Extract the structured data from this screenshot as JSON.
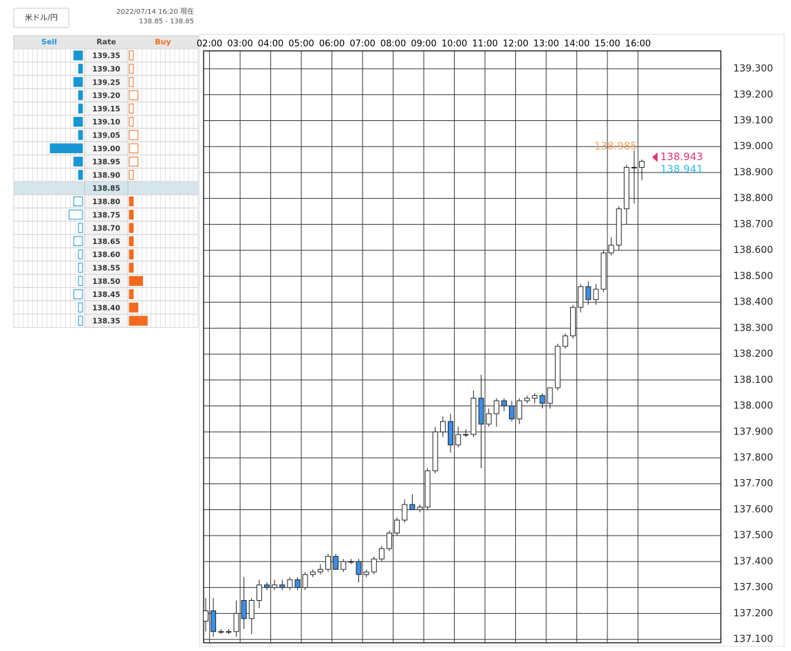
{
  "header": {
    "pair": "米ドル/円",
    "timestamp": "2022/07/14 16:20 現在",
    "quote": "138.85 - 138.85"
  },
  "order_book": {
    "headers": [
      "Sell",
      "Rate",
      "Buy"
    ],
    "current_rate": "138.85",
    "sell_color": "#1a96d4",
    "buy_color": "#f26b1d",
    "rows": [
      {
        "rate": "139.35",
        "sell": 2,
        "buy": 1
      },
      {
        "rate": "139.30",
        "sell": 1,
        "buy": 1
      },
      {
        "rate": "139.25",
        "sell": 2,
        "buy": 1
      },
      {
        "rate": "139.20",
        "sell": 1,
        "buy": 2
      },
      {
        "rate": "139.15",
        "sell": 1,
        "buy": 1
      },
      {
        "rate": "139.10",
        "sell": 2,
        "buy": 1
      },
      {
        "rate": "139.05",
        "sell": 1,
        "buy": 2
      },
      {
        "rate": "139.00",
        "sell": 7,
        "buy": 2
      },
      {
        "rate": "138.95",
        "sell": 2,
        "buy": 2
      },
      {
        "rate": "138.90",
        "sell": 1,
        "buy": 1
      },
      {
        "rate": "138.85",
        "sell": 0,
        "buy": 0
      },
      {
        "rate": "138.80",
        "sell": 2,
        "buy": 1
      },
      {
        "rate": "138.75",
        "sell": 3,
        "buy": 1
      },
      {
        "rate": "138.70",
        "sell": 1,
        "buy": 1
      },
      {
        "rate": "138.65",
        "sell": 2,
        "buy": 1
      },
      {
        "rate": "138.60",
        "sell": 1,
        "buy": 1
      },
      {
        "rate": "138.55",
        "sell": 1,
        "buy": 1
      },
      {
        "rate": "138.50",
        "sell": 1,
        "buy": 3
      },
      {
        "rate": "138.45",
        "sell": 2,
        "buy": 1
      },
      {
        "rate": "138.40",
        "sell": 1,
        "buy": 2
      },
      {
        "rate": "138.35",
        "sell": 1,
        "buy": 4
      }
    ]
  },
  "chart_data": {
    "type": "candlestick",
    "up_color": "#ffffff",
    "down_color": "#3a8ee6",
    "grid": true,
    "x": [
      1.75,
      2,
      2.25,
      2.5,
      2.75,
      3,
      3.25,
      3.5,
      3.75,
      4,
      4.25,
      4.5,
      4.75,
      5,
      5.25,
      5.5,
      5.75,
      6,
      6.25,
      6.5,
      6.75,
      7,
      7.25,
      7.5,
      7.75,
      8,
      8.25,
      8.5,
      8.75,
      9,
      9.25,
      9.5,
      9.75,
      10,
      10.25,
      10.5,
      10.75,
      11,
      11.25,
      11.5,
      11.75,
      12,
      12.25,
      12.5,
      12.75,
      13,
      13.25,
      13.5,
      13.75,
      14,
      14.25,
      14.5,
      14.75,
      15,
      15.25,
      15.5,
      15.75,
      16
    ],
    "open": [
      137.17,
      137.21,
      137.13,
      137.13,
      137.13,
      137.25,
      137.18,
      137.25,
      137.31,
      137.3,
      137.31,
      137.3,
      137.33,
      137.3,
      137.35,
      137.36,
      137.37,
      137.42,
      137.37,
      137.4,
      137.4,
      137.35,
      137.36,
      137.41,
      137.45,
      137.51,
      137.56,
      137.62,
      137.6,
      137.61,
      137.75,
      137.9,
      137.94,
      137.85,
      137.89,
      137.89,
      138.03,
      137.93,
      137.97,
      138.02,
      138.0,
      137.95,
      138.02,
      138.03,
      138.04,
      138.01,
      138.07,
      138.23,
      138.27,
      138.38,
      138.46,
      138.41,
      138.45,
      138.59,
      138.62,
      138.76,
      138.92,
      138.92
    ],
    "high": [
      137.26,
      137.26,
      137.14,
      137.14,
      137.25,
      137.34,
      137.26,
      137.33,
      137.32,
      137.33,
      137.33,
      137.34,
      137.34,
      137.36,
      137.37,
      137.39,
      137.43,
      137.43,
      137.41,
      137.41,
      137.41,
      137.37,
      137.42,
      137.46,
      137.52,
      137.57,
      137.64,
      137.66,
      137.62,
      137.76,
      137.92,
      137.96,
      137.97,
      137.92,
      137.91,
      138.06,
      138.12,
      137.99,
      138.03,
      138.03,
      138.02,
      138.03,
      138.04,
      138.05,
      138.05,
      138.07,
      138.24,
      138.28,
      138.39,
      138.47,
      138.48,
      138.47,
      138.6,
      138.65,
      138.77,
      138.93,
      138.985,
      138.95
    ],
    "low": [
      137.13,
      137.11,
      137.12,
      137.12,
      137.11,
      137.14,
      137.12,
      137.22,
      137.29,
      137.29,
      137.29,
      137.29,
      137.29,
      137.29,
      137.34,
      137.35,
      137.36,
      137.37,
      137.36,
      137.39,
      137.32,
      137.34,
      137.35,
      137.4,
      137.44,
      137.5,
      137.55,
      137.6,
      137.59,
      137.6,
      137.74,
      137.88,
      137.82,
      137.84,
      137.88,
      137.88,
      137.76,
      137.92,
      137.92,
      137.98,
      137.94,
      137.93,
      138.01,
      138.01,
      137.99,
      137.99,
      138.06,
      138.22,
      138.26,
      138.36,
      138.39,
      138.39,
      138.44,
      138.58,
      138.6,
      138.7,
      138.78,
      138.87
    ],
    "close": [
      137.21,
      137.13,
      137.13,
      137.13,
      137.2,
      137.18,
      137.25,
      137.31,
      137.3,
      137.31,
      137.3,
      137.33,
      137.3,
      137.35,
      137.36,
      137.37,
      137.42,
      137.37,
      137.4,
      137.4,
      137.35,
      137.36,
      137.41,
      137.45,
      137.51,
      137.56,
      137.62,
      137.6,
      137.61,
      137.75,
      137.9,
      137.94,
      137.85,
      137.89,
      137.89,
      138.03,
      137.93,
      137.97,
      138.02,
      138.0,
      137.95,
      138.02,
      138.03,
      138.04,
      138.01,
      138.07,
      138.23,
      138.27,
      138.38,
      138.46,
      138.41,
      138.45,
      138.59,
      138.62,
      138.76,
      138.92,
      138.92,
      138.943
    ],
    "xlim": [
      1.807,
      18.706
    ],
    "ylim": [
      137.087,
      139.369
    ],
    "xticks": [
      {
        "value": 2,
        "label": "02:00"
      },
      {
        "value": 3,
        "label": "03:00"
      },
      {
        "value": 4,
        "label": "04:00"
      },
      {
        "value": 5,
        "label": "05:00"
      },
      {
        "value": 6,
        "label": "06:00"
      },
      {
        "value": 7,
        "label": "07:00"
      },
      {
        "value": 8,
        "label": "08:00"
      },
      {
        "value": 9,
        "label": "09:00"
      },
      {
        "value": 10,
        "label": "10:00"
      },
      {
        "value": 11,
        "label": "11:00"
      },
      {
        "value": 12,
        "label": "12:00"
      },
      {
        "value": 13,
        "label": "13:00"
      },
      {
        "value": 14,
        "label": "14:00"
      },
      {
        "value": 15,
        "label": "15:00"
      },
      {
        "value": 16,
        "label": "16:00"
      }
    ],
    "yticks": [
      {
        "value": 137.1,
        "label": "137.100"
      },
      {
        "value": 137.2,
        "label": "137.200"
      },
      {
        "value": 137.3,
        "label": "137.300"
      },
      {
        "value": 137.4,
        "label": "137.400"
      },
      {
        "value": 137.5,
        "label": "137.500"
      },
      {
        "value": 137.6,
        "label": "137.600"
      },
      {
        "value": 137.7,
        "label": "137.700"
      },
      {
        "value": 137.8,
        "label": "137.800"
      },
      {
        "value": 137.9,
        "label": "137.900"
      },
      {
        "value": 138.0,
        "label": "138.000"
      },
      {
        "value": 138.1,
        "label": "138.100"
      },
      {
        "value": 138.2,
        "label": "138.200"
      },
      {
        "value": 138.3,
        "label": "138.300"
      },
      {
        "value": 138.4,
        "label": "138.400"
      },
      {
        "value": 138.5,
        "label": "138.500"
      },
      {
        "value": 138.6,
        "label": "138.600"
      },
      {
        "value": 138.7,
        "label": "138.700"
      },
      {
        "value": 138.8,
        "label": "138.800"
      },
      {
        "value": 138.9,
        "label": "138.900"
      },
      {
        "value": 139.0,
        "label": "139.000"
      },
      {
        "value": 139.1,
        "label": "139.100"
      },
      {
        "value": 139.2,
        "label": "139.200"
      },
      {
        "value": 139.3,
        "label": "139.300"
      }
    ],
    "price_markers": [
      {
        "value": 138.985,
        "label": "138.985",
        "color": "#f5a05a"
      },
      {
        "value": 138.943,
        "label": "138.943",
        "color": "#e8336d"
      },
      {
        "value": 138.941,
        "label": "138.941",
        "color": "#2bb8ea"
      }
    ]
  }
}
